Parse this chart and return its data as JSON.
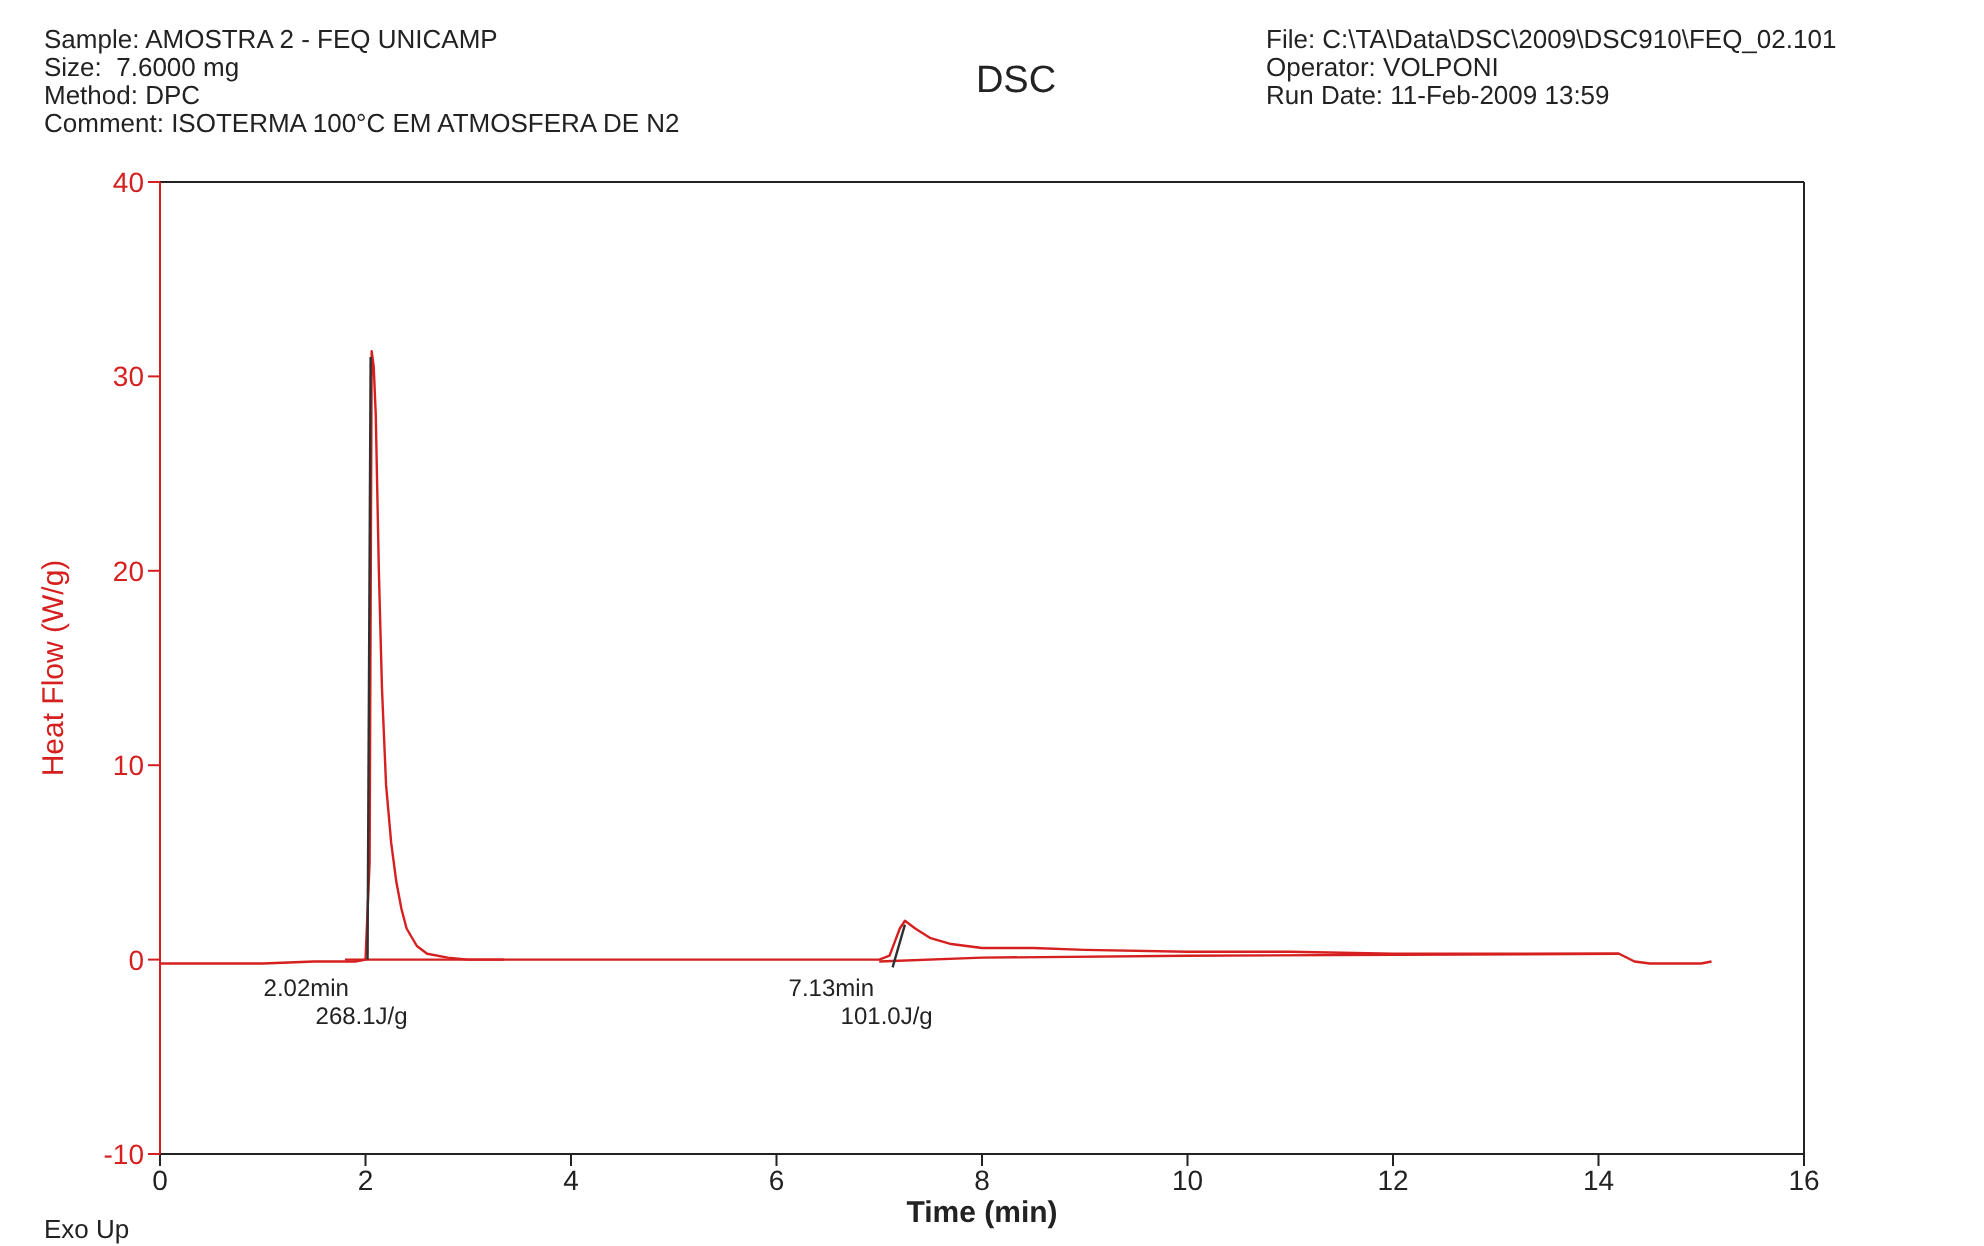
{
  "chart_data": {
    "type": "line",
    "title": "DSC",
    "xlabel": "Time (min)",
    "ylabel": "Heat Flow (W/g)",
    "annotations": [
      "Sample: AMOSTRA 2 - FEQ UNICAMP",
      "Size:  7.6000 mg",
      "Method: DPC",
      "Comment: ISOTERMA 100°C EM ATMOSFERA DE N2",
      "File: C:\\TA\\Data\\DSC\\2009\\DSC910\\FEQ_02.101",
      "Operator: VOLPONI",
      "Run Date: 11-Feb-2009 13:59",
      "Exo Up",
      {
        "text": "2.02min\n268.1J/g",
        "x": 2.02,
        "y": 0
      },
      {
        "text": "7.13min\n101.0J/g",
        "x": 7.13,
        "y": 0
      }
    ],
    "xlim": [
      0,
      16
    ],
    "xticks": [
      0,
      2,
      4,
      6,
      8,
      10,
      12,
      14,
      16
    ],
    "ylim": [
      -10,
      40
    ],
    "yticks": [
      -10,
      0,
      10,
      20,
      30,
      40
    ],
    "grid": false,
    "legend": false,
    "marker": "none",
    "line_style": "solid",
    "series": [
      {
        "color": "#d62020",
        "x": [
          0,
          0.5,
          1,
          1.5,
          1.9,
          2.0,
          2.04,
          2.06,
          2.08,
          2.1,
          2.13,
          2.16,
          2.2,
          2.25,
          2.3,
          2.35,
          2.4,
          2.5,
          2.6,
          2.8,
          3.0,
          4,
          5,
          6,
          7,
          7.1,
          7.15,
          7.2,
          7.25,
          7.35,
          7.5,
          7.7,
          8,
          8.5,
          9,
          10,
          11,
          12,
          13,
          14,
          14.2,
          14.35,
          14.5,
          15,
          15.1
        ],
        "values": [
          -0.2,
          -0.2,
          -0.2,
          -0.1,
          -0.1,
          0,
          5,
          31.3,
          30.5,
          28,
          20,
          14,
          9,
          6,
          4,
          2.6,
          1.6,
          0.7,
          0.3,
          0.1,
          0,
          0,
          0,
          0,
          0,
          0.2,
          0.9,
          1.6,
          2.0,
          1.6,
          1.1,
          0.8,
          0.6,
          0.6,
          0.5,
          0.4,
          0.4,
          0.3,
          0.3,
          0.3,
          0.3,
          -0.1,
          -0.2,
          -0.2,
          -0.1
        ]
      },
      {
        "color": "#d62020",
        "x": [
          1.8,
          3.35
        ],
        "values": [
          0,
          0
        ]
      },
      {
        "color": "#d62020",
        "x": [
          7.0,
          8,
          10,
          14.2
        ],
        "values": [
          -0.1,
          0.1,
          0.2,
          0.3
        ]
      },
      {
        "color": "#303030",
        "x": [
          2.02,
          2.05
        ],
        "values": [
          0,
          31
        ]
      },
      {
        "color": "#303030",
        "x": [
          7.13,
          7.25
        ],
        "values": [
          -0.4,
          1.8
        ]
      }
    ]
  }
}
